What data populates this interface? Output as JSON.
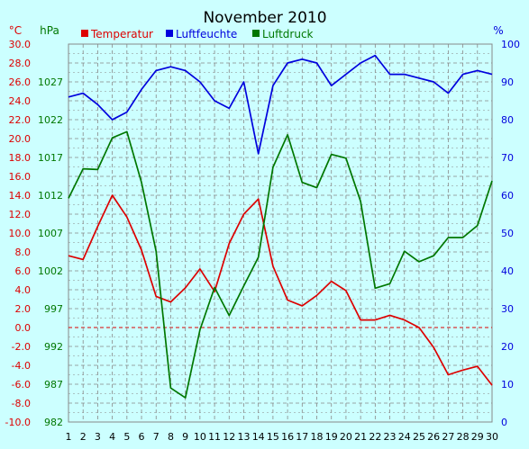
{
  "colors": {
    "background": "#ccffff",
    "temperature": "#dd0000",
    "humidity": "#0000dd",
    "pressure": "#007700",
    "grid": "#888888",
    "zero_line": "#dd0000",
    "text": "#000000"
  },
  "chart_data": {
    "type": "line",
    "title": "November 2010",
    "grid": true,
    "legend_position": "top",
    "x": [
      1,
      2,
      3,
      4,
      5,
      6,
      7,
      8,
      9,
      10,
      11,
      12,
      13,
      14,
      15,
      16,
      17,
      18,
      19,
      20,
      21,
      22,
      23,
      24,
      25,
      26,
      27,
      28,
      29,
      30
    ],
    "x_ticks": [
      "1",
      "2",
      "3",
      "4",
      "5",
      "6",
      "7",
      "8",
      "9",
      "10",
      "11",
      "12",
      "13",
      "14",
      "15",
      "16",
      "17",
      "18",
      "19",
      "20",
      "21",
      "22",
      "23",
      "24",
      "25",
      "26",
      "27",
      "28",
      "29",
      "30"
    ],
    "axes": {
      "temperature": {
        "unit": "°C",
        "ylim": [
          -10,
          30
        ],
        "ticks": [
          "30.0",
          "28.0",
          "26.0",
          "24.0",
          "22.0",
          "20.0",
          "18.0",
          "16.0",
          "14.0",
          "12.0",
          "10.0",
          "8.0",
          "6.0",
          "4.0",
          "2.0",
          "0.0",
          "-2.0",
          "-4.0",
          "-6.0",
          "-8.0",
          "-10.0"
        ]
      },
      "pressure": {
        "unit": "hPa",
        "ylim": [
          982,
          1032
        ],
        "ticks": [
          "1027",
          "1022",
          "1017",
          "1012",
          "1007",
          "1002",
          "997",
          "992",
          "987",
          "982"
        ]
      },
      "humidity": {
        "unit": "%",
        "ylim": [
          0,
          100
        ],
        "ticks": [
          "100",
          "90",
          "80",
          "70",
          "60",
          "50",
          "40",
          "30",
          "20",
          "10",
          "0"
        ]
      }
    },
    "series": [
      {
        "name": "Temperatur",
        "axis": "temperature",
        "color": "#dd0000",
        "values": [
          7.6,
          7.2,
          10.7,
          14.0,
          11.7,
          8.2,
          3.3,
          2.7,
          4.2,
          6.2,
          3.8,
          8.9,
          12.0,
          13.6,
          6.5,
          2.9,
          2.3,
          3.4,
          4.9,
          3.9,
          0.8,
          0.8,
          1.3,
          0.8,
          0.0,
          -2.1,
          -5.0,
          -4.5,
          -4.1,
          -6.1
        ]
      },
      {
        "name": "Luftfeuchte",
        "axis": "humidity",
        "color": "#0000dd",
        "values": [
          86,
          87,
          84,
          80,
          82,
          88,
          93,
          94,
          93,
          90,
          85,
          83,
          90,
          71,
          89,
          95,
          96,
          95,
          89,
          92,
          95,
          97,
          92,
          92,
          91,
          90,
          87,
          92,
          93,
          92
        ]
      },
      {
        "name": "Luftdruck",
        "axis": "pressure",
        "color": "#007700",
        "values": [
          1011.6,
          1015.5,
          1015.4,
          1019.6,
          1020.4,
          1013.7,
          1004.6,
          986.5,
          985.2,
          994.2,
          999.8,
          996.1,
          1000.0,
          1003.8,
          1015.7,
          1020.0,
          1013.7,
          1013.0,
          1017.4,
          1016.9,
          1011.2,
          999.7,
          1000.3,
          1004.6,
          1003.2,
          1004.0,
          1006.4,
          1006.4,
          1008.0,
          1013.9
        ]
      }
    ]
  }
}
